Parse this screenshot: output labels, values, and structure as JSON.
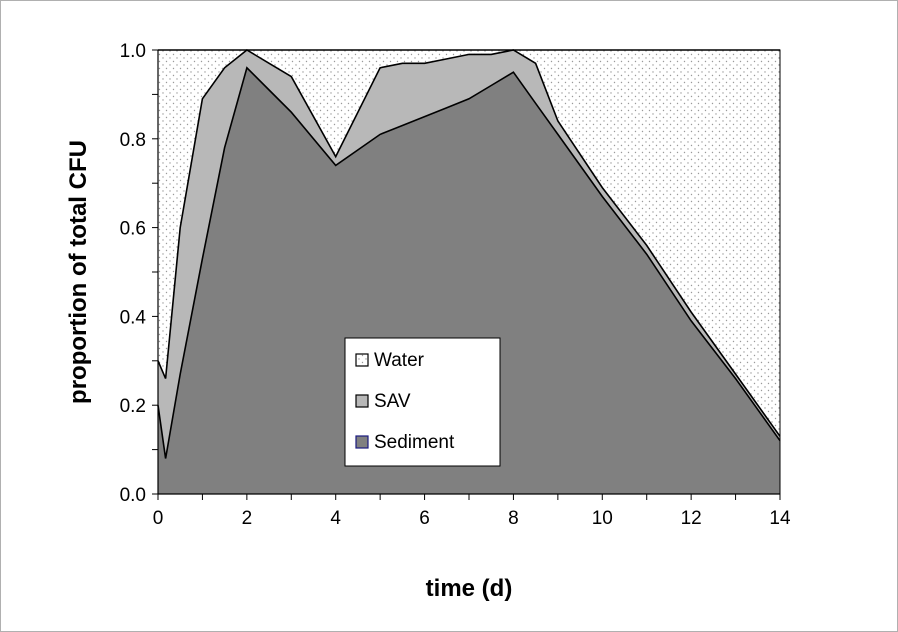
{
  "chart_data": {
    "type": "area",
    "stacked": true,
    "title": "",
    "xlabel": "time (d)",
    "ylabel": "proportion of total CFU",
    "xlim": [
      0,
      14
    ],
    "ylim": [
      0,
      1
    ],
    "x_ticks": [
      "0",
      "2",
      "4",
      "6",
      "8",
      "10",
      "12",
      "14"
    ],
    "y_ticks": [
      "0.0",
      "0.2",
      "0.4",
      "0.6",
      "0.8",
      "1.0"
    ],
    "grid": false,
    "legend_position": "center-left, inside plot",
    "x": [
      0,
      0.17,
      0.5,
      1,
      1.5,
      2,
      2.5,
      3,
      4,
      5,
      5.5,
      6,
      6.5,
      7,
      7.5,
      8,
      8.5,
      9,
      10,
      11,
      12,
      13,
      14
    ],
    "series": [
      {
        "name": "Sediment",
        "color": "#808080",
        "values": [
          0.2,
          0.08,
          0.27,
          0.53,
          0.78,
          0.96,
          0.91,
          0.86,
          0.74,
          0.81,
          0.83,
          0.85,
          0.87,
          0.89,
          0.92,
          0.95,
          0.88,
          0.81,
          0.67,
          0.54,
          0.39,
          0.26,
          0.12
        ]
      },
      {
        "name": "SAV",
        "color": "#b8b8b8",
        "values": [
          0.1,
          0.18,
          0.33,
          0.36,
          0.18,
          0.04,
          0.06,
          0.08,
          0.02,
          0.15,
          0.14,
          0.12,
          0.11,
          0.1,
          0.07,
          0.05,
          0.09,
          0.03,
          0.02,
          0.02,
          0.02,
          0.01,
          0.01
        ]
      },
      {
        "name": "Water",
        "color": "#f2f2f2",
        "values": [
          0.7,
          0.74,
          0.4,
          0.11,
          0.04,
          0.0,
          0.03,
          0.06,
          0.24,
          0.04,
          0.03,
          0.03,
          0.02,
          0.01,
          0.01,
          0.0,
          0.03,
          0.16,
          0.31,
          0.44,
          0.59,
          0.73,
          0.87
        ]
      }
    ],
    "legend": [
      {
        "label": "Water",
        "color": "#f2f2f2"
      },
      {
        "label": "SAV",
        "color": "#b8b8b8"
      },
      {
        "label": "Sediment",
        "color": "#808080",
        "border": "#1a1a80"
      }
    ]
  }
}
